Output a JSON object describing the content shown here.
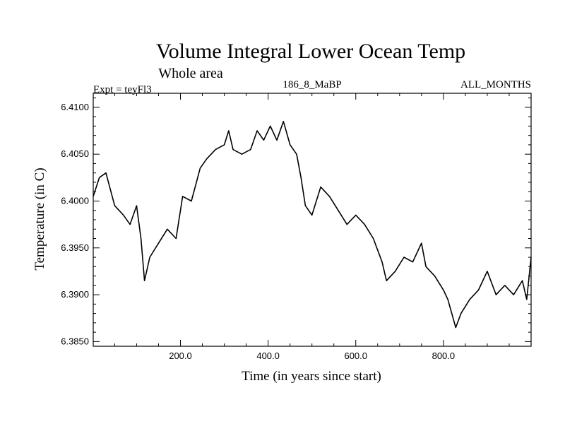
{
  "chart_data": {
    "type": "line",
    "title": "Volume Integral Lower Ocean Temp",
    "subtitle": "Whole area",
    "expt_label": "Expt = teyFl3",
    "center_label": "186_8_MaBP",
    "right_label": "ALL_MONTHS",
    "xlabel": "Time (in years since start)",
    "ylabel": "Temperature (in C)",
    "xlim": [
      1,
      1000
    ],
    "ylim": [
      6.3845,
      6.4115
    ],
    "x_ticks": [
      200,
      400,
      600,
      800
    ],
    "x_tick_labels": [
      "200.0",
      "400.0",
      "600.0",
      "800.0"
    ],
    "y_ticks": [
      6.385,
      6.39,
      6.395,
      6.4,
      6.405,
      6.41
    ],
    "y_tick_labels": [
      "6.3850",
      "6.3900",
      "6.3950",
      "6.4000",
      "6.4050",
      "6.4100"
    ],
    "grid": false,
    "series": [
      {
        "name": "teyFl3",
        "x": [
          1,
          15,
          30,
          50,
          70,
          85,
          100,
          110,
          118,
          130,
          150,
          170,
          190,
          205,
          225,
          245,
          260,
          280,
          300,
          310,
          320,
          340,
          360,
          375,
          390,
          405,
          420,
          435,
          450,
          465,
          475,
          485,
          500,
          520,
          540,
          560,
          580,
          600,
          620,
          640,
          660,
          670,
          690,
          710,
          730,
          750,
          760,
          780,
          800,
          810,
          828,
          840,
          860,
          880,
          900,
          920,
          940,
          960,
          980,
          990,
          1000
        ],
        "y": [
          6.4005,
          6.4025,
          6.403,
          6.3995,
          6.3985,
          6.3975,
          6.3995,
          6.396,
          6.3915,
          6.394,
          6.3955,
          6.397,
          6.396,
          6.4005,
          6.4,
          6.4035,
          6.4045,
          6.4055,
          6.406,
          6.4075,
          6.4055,
          6.405,
          6.4055,
          6.4075,
          6.4065,
          6.408,
          6.4065,
          6.4085,
          6.406,
          6.405,
          6.4025,
          6.3995,
          6.3985,
          6.4015,
          6.4005,
          6.399,
          6.3975,
          6.3985,
          6.3975,
          6.396,
          6.3935,
          6.3915,
          6.3925,
          6.394,
          6.3935,
          6.3955,
          6.393,
          6.392,
          6.3905,
          6.3895,
          6.3865,
          6.388,
          6.3895,
          6.3905,
          6.3925,
          6.39,
          6.391,
          6.39,
          6.3915,
          6.3895,
          6.394
        ]
      }
    ]
  }
}
